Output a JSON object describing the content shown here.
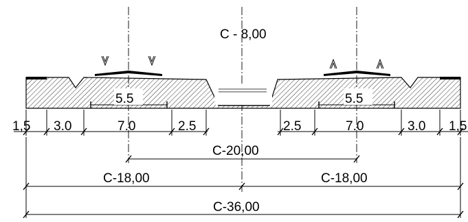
{
  "title_text": "C - 8,00",
  "section_dims": {
    "left": [
      "1,5",
      "3.0",
      "7.0",
      "2.5"
    ],
    "right": [
      "2.5",
      "7.0",
      "3.0",
      "1,5"
    ],
    "inner_left": "5.5",
    "inner_right": "5.5"
  },
  "overall_dims": {
    "between_axes": "C-20,00",
    "half_left": "C-18,00",
    "half_right": "C-18,00",
    "total": "C-36,00"
  },
  "colors": {
    "line": "#000000",
    "background": "#ffffff"
  }
}
